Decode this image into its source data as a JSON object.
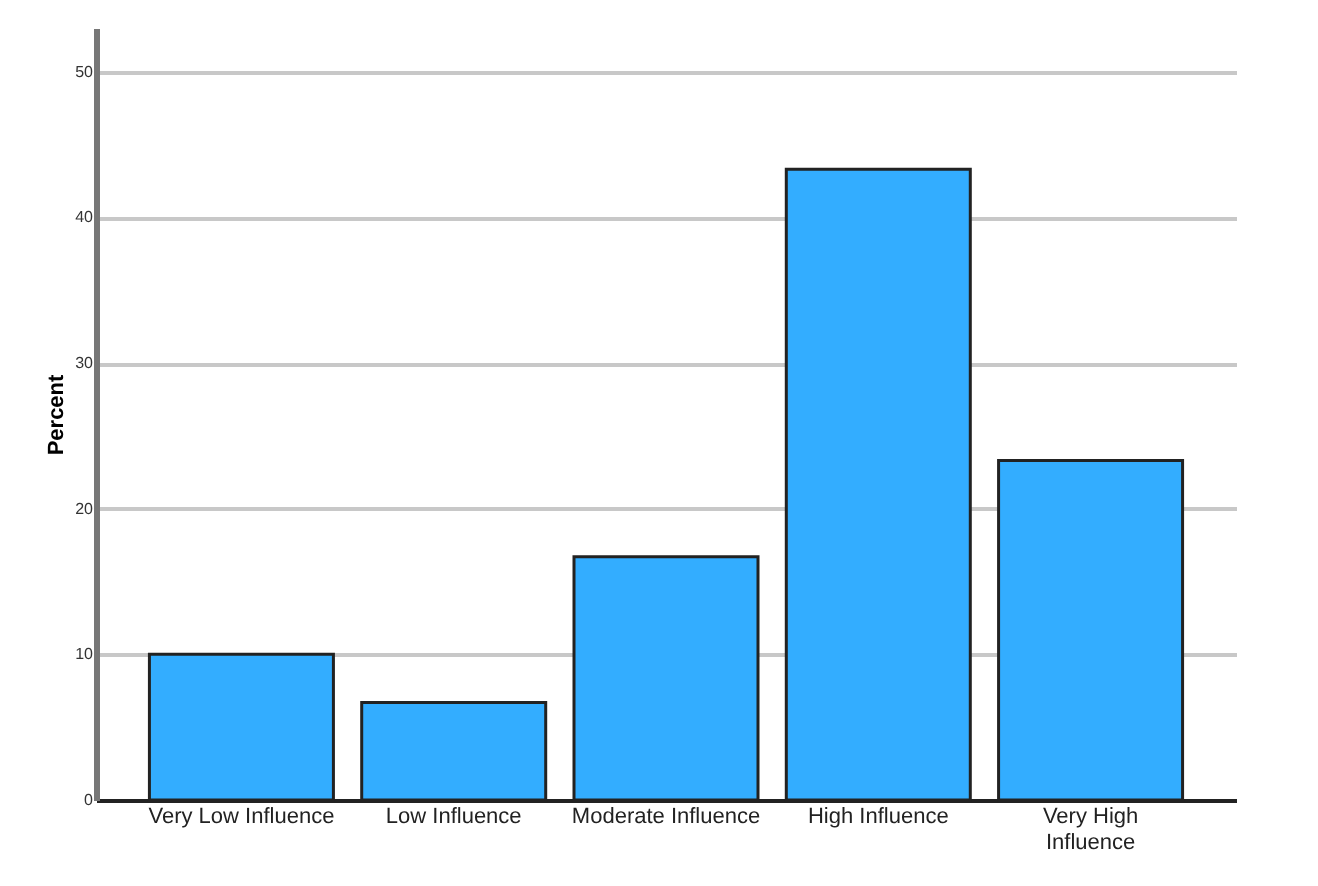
{
  "chart_data": {
    "type": "bar",
    "ylabel": "Percent",
    "categories": [
      "Very Low Influence",
      "Low Influence",
      "Moderate Influence",
      "High Influence",
      "Very High Influence"
    ],
    "values": [
      10.0,
      6.7,
      16.7,
      43.3,
      23.3
    ],
    "color": "#33adff",
    "ylim": [
      0,
      53
    ],
    "yticks": [
      0,
      10,
      20,
      30,
      40,
      50
    ],
    "grid": "y"
  }
}
